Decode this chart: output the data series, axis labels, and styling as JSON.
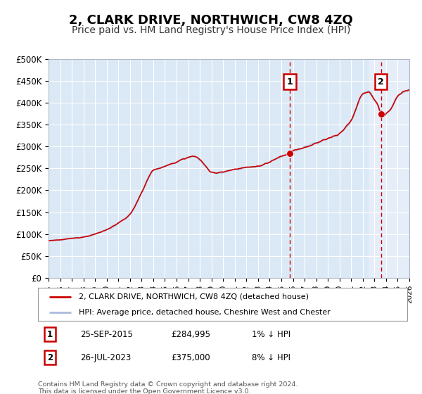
{
  "title": "2, CLARK DRIVE, NORTHWICH, CW8 4ZQ",
  "subtitle": "Price paid vs. HM Land Registry's House Price Index (HPI)",
  "ylim": [
    0,
    500000
  ],
  "yticks": [
    0,
    50000,
    100000,
    150000,
    200000,
    250000,
    300000,
    350000,
    400000,
    450000,
    500000
  ],
  "ytick_labels": [
    "£0",
    "£50K",
    "£100K",
    "£150K",
    "£200K",
    "£250K",
    "£300K",
    "£350K",
    "£400K",
    "£450K",
    "£500K"
  ],
  "hpi_color": "#aabbdd",
  "price_color": "#cc0000",
  "plot_bg": "#dbe8f5",
  "plot_bg_recent": "#e8f0fa",
  "grid_color": "#ffffff",
  "sale1_date": 2015.73,
  "sale1_price": 284995,
  "sale1_label": "1",
  "sale2_date": 2023.56,
  "sale2_price": 375000,
  "sale2_label": "2",
  "legend_label1": "2, CLARK DRIVE, NORTHWICH, CW8 4ZQ (detached house)",
  "legend_label2": "HPI: Average price, detached house, Cheshire West and Chester",
  "table_row1": [
    "1",
    "25-SEP-2015",
    "£284,995",
    "1% ↓ HPI"
  ],
  "table_row2": [
    "2",
    "26-JUL-2023",
    "£375,000",
    "8% ↓ HPI"
  ],
  "footer": "Contains HM Land Registry data © Crown copyright and database right 2024.\nThis data is licensed under the Open Government Licence v3.0.",
  "xmin": 1995,
  "xmax": 2026,
  "title_fontsize": 13,
  "subtitle_fontsize": 10
}
